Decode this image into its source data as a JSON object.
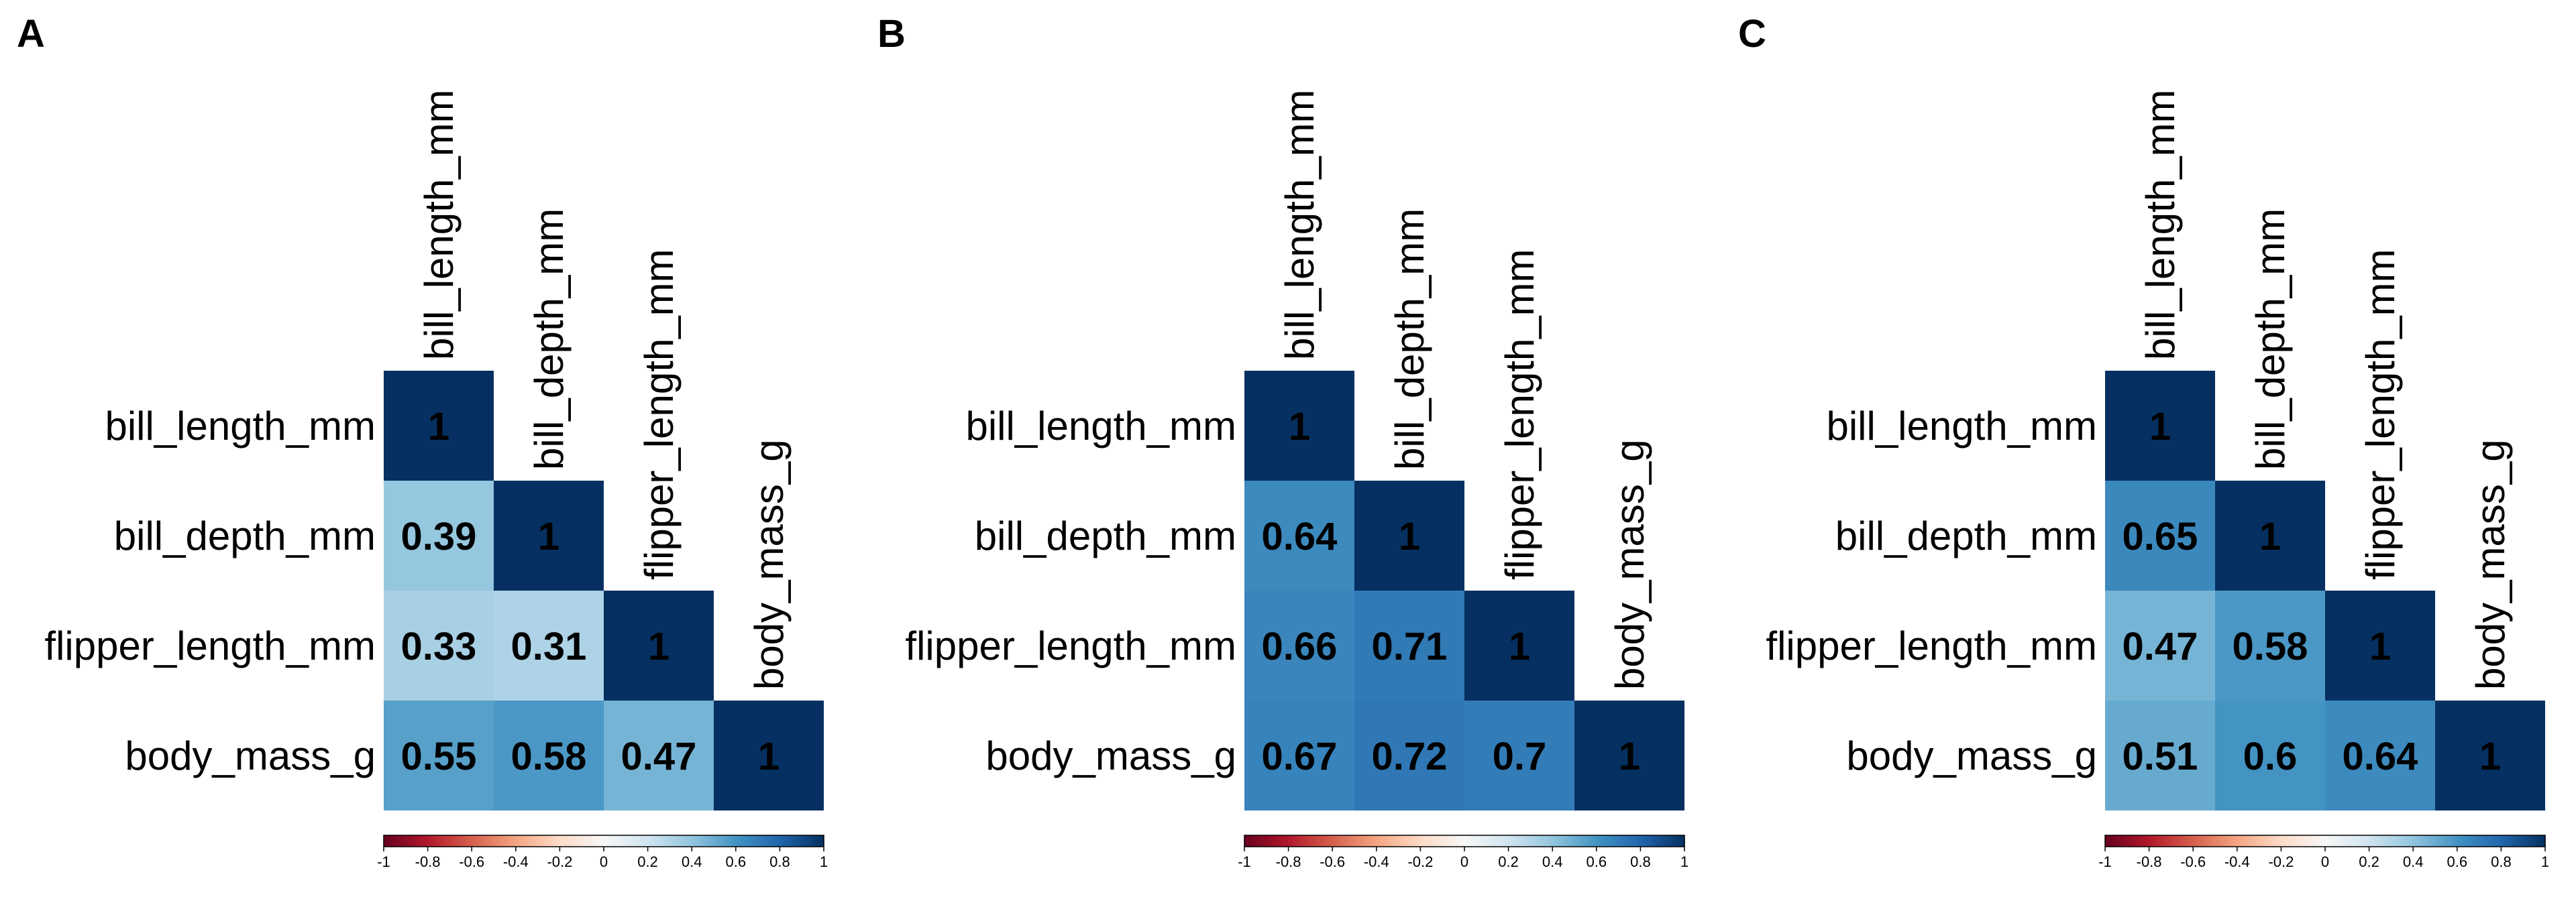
{
  "chart_data": [
    {
      "type": "heatmap",
      "panel": "A",
      "variables": [
        "bill_length_mm",
        "bill_depth_mm",
        "flipper_length_mm",
        "body_mass_g"
      ],
      "matrix": [
        [
          1,
          null,
          null,
          null
        ],
        [
          0.39,
          1,
          null,
          null
        ],
        [
          0.33,
          0.31,
          1,
          null
        ],
        [
          0.55,
          0.58,
          0.47,
          1
        ]
      ],
      "value_labels": [
        [
          "1",
          "",
          "",
          ""
        ],
        [
          "0.39",
          "1",
          "",
          ""
        ],
        [
          "0.33",
          "0.31",
          "1",
          ""
        ],
        [
          "0.55",
          "0.58",
          "0.47",
          "1"
        ]
      ],
      "colorbar": {
        "range": [
          -1,
          1
        ],
        "ticks": [
          "-1",
          "-0.8",
          "-0.6",
          "-0.4",
          "-0.2",
          "0",
          "0.2",
          "0.4",
          "0.6",
          "0.8",
          "1"
        ]
      }
    },
    {
      "type": "heatmap",
      "panel": "B",
      "variables": [
        "bill_length_mm",
        "bill_depth_mm",
        "flipper_length_mm",
        "body_mass_g"
      ],
      "matrix": [
        [
          1,
          null,
          null,
          null
        ],
        [
          0.64,
          1,
          null,
          null
        ],
        [
          0.66,
          0.71,
          1,
          null
        ],
        [
          0.67,
          0.72,
          0.7,
          1
        ]
      ],
      "value_labels": [
        [
          "1",
          "",
          "",
          ""
        ],
        [
          "0.64",
          "1",
          "",
          ""
        ],
        [
          "0.66",
          "0.71",
          "1",
          ""
        ],
        [
          "0.67",
          "0.72",
          "0.7",
          "1"
        ]
      ],
      "colorbar": {
        "range": [
          -1,
          1
        ],
        "ticks": [
          "-1",
          "-0.8",
          "-0.6",
          "-0.4",
          "-0.2",
          "0",
          "0.2",
          "0.4",
          "0.6",
          "0.8",
          "1"
        ]
      }
    },
    {
      "type": "heatmap",
      "panel": "C",
      "variables": [
        "bill_length_mm",
        "bill_depth_mm",
        "flipper_length_mm",
        "body_mass_g"
      ],
      "matrix": [
        [
          1,
          null,
          null,
          null
        ],
        [
          0.65,
          1,
          null,
          null
        ],
        [
          0.47,
          0.58,
          1,
          null
        ],
        [
          0.51,
          0.6,
          0.64,
          1
        ]
      ],
      "value_labels": [
        [
          "1",
          "",
          "",
          ""
        ],
        [
          "0.65",
          "1",
          "",
          ""
        ],
        [
          "0.47",
          "0.58",
          "1",
          ""
        ],
        [
          "0.51",
          "0.6",
          "0.64",
          "1"
        ]
      ],
      "colorbar": {
        "range": [
          -1,
          1
        ],
        "ticks": [
          "-1",
          "-0.8",
          "-0.6",
          "-0.4",
          "-0.2",
          "0",
          "0.2",
          "0.4",
          "0.6",
          "0.8",
          "1"
        ]
      }
    }
  ],
  "colors": {
    "palette": [
      "#67001f",
      "#b2182b",
      "#d6604d",
      "#f4a582",
      "#fddbc7",
      "#f7f7f7",
      "#d1e5f0",
      "#92c5de",
      "#4393c3",
      "#2166ac",
      "#053061"
    ],
    "text": "#000000",
    "background": "#ffffff"
  }
}
